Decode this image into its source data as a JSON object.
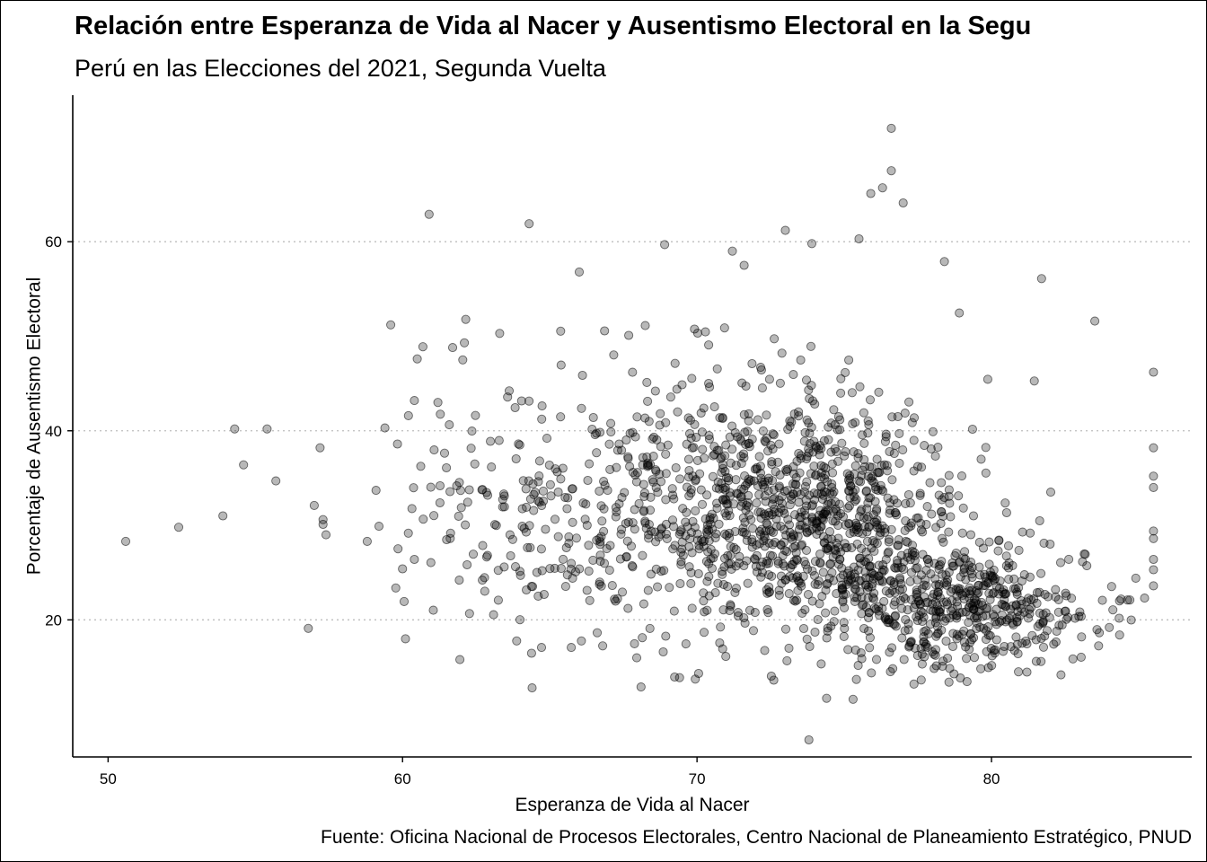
{
  "chart_data": {
    "type": "scatter",
    "title": "Relación entre Esperanza de Vida al Nacer y Ausentismo Electoral en la Segu",
    "subtitle": "Perú en las Elecciones del 2021, Segunda Vuelta",
    "xlabel": "Esperanza de Vida al Nacer",
    "ylabel": "Porcentaje de Ausentismo Electoral",
    "caption": "Fuente: Oficina Nacional de Procesos Electorales, Centro Nacional de Planeamiento Estratégico, PNUD",
    "xlim": [
      48.8,
      86.8
    ],
    "ylim": [
      5.5,
      75.5
    ],
    "x_ticks": [
      50,
      60,
      70,
      80
    ],
    "y_ticks": [
      20,
      40,
      60
    ],
    "grid": {
      "major_y": "dotted",
      "x": false
    },
    "point_color": "#000000",
    "point_alpha": 0.28,
    "highlighted_points": [
      {
        "x": 50.6,
        "y": 28.3
      },
      {
        "x": 52.4,
        "y": 29.8
      },
      {
        "x": 53.9,
        "y": 31.0
      },
      {
        "x": 54.3,
        "y": 40.2
      },
      {
        "x": 54.6,
        "y": 36.4
      },
      {
        "x": 55.4,
        "y": 40.2
      },
      {
        "x": 55.7,
        "y": 34.7
      },
      {
        "x": 56.8,
        "y": 19.1
      },
      {
        "x": 57.0,
        "y": 32.1
      },
      {
        "x": 57.2,
        "y": 38.2
      },
      {
        "x": 57.3,
        "y": 30.6
      },
      {
        "x": 57.3,
        "y": 30.1
      },
      {
        "x": 57.4,
        "y": 29.0
      },
      {
        "x": 58.8,
        "y": 28.3
      },
      {
        "x": 59.1,
        "y": 33.7
      },
      {
        "x": 59.2,
        "y": 29.9
      },
      {
        "x": 59.4,
        "y": 40.3
      },
      {
        "x": 59.6,
        "y": 51.2
      },
      {
        "x": 60.0,
        "y": 25.4
      },
      {
        "x": 60.1,
        "y": 18.0
      },
      {
        "x": 60.2,
        "y": 41.6
      },
      {
        "x": 60.4,
        "y": 43.2
      },
      {
        "x": 60.4,
        "y": 26.4
      },
      {
        "x": 60.5,
        "y": 47.6
      },
      {
        "x": 60.9,
        "y": 62.9
      },
      {
        "x": 61.2,
        "y": 43.0
      },
      {
        "x": 61.7,
        "y": 48.8
      },
      {
        "x": 62.1,
        "y": 49.3
      },
      {
        "x": 63.3,
        "y": 50.3
      },
      {
        "x": 64.3,
        "y": 61.9
      },
      {
        "x": 64.4,
        "y": 12.8
      },
      {
        "x": 66.0,
        "y": 56.8
      },
      {
        "x": 68.1,
        "y": 12.9
      },
      {
        "x": 68.9,
        "y": 59.7
      },
      {
        "x": 71.2,
        "y": 59.0
      },
      {
        "x": 71.6,
        "y": 57.5
      },
      {
        "x": 73.0,
        "y": 61.2
      },
      {
        "x": 73.8,
        "y": 7.3
      },
      {
        "x": 73.9,
        "y": 59.8
      },
      {
        "x": 74.4,
        "y": 11.7
      },
      {
        "x": 75.3,
        "y": 11.6
      },
      {
        "x": 75.5,
        "y": 60.3
      },
      {
        "x": 75.9,
        "y": 65.1
      },
      {
        "x": 76.3,
        "y": 65.7
      },
      {
        "x": 76.6,
        "y": 67.5
      },
      {
        "x": 76.6,
        "y": 72.0
      },
      {
        "x": 77.0,
        "y": 64.1
      },
      {
        "x": 78.4,
        "y": 57.9
      },
      {
        "x": 81.7,
        "y": 56.1
      },
      {
        "x": 84.0,
        "y": 19.2
      },
      {
        "x": 84.4,
        "y": 22.2
      },
      {
        "x": 84.7,
        "y": 22.1
      },
      {
        "x": 85.2,
        "y": 22.3
      },
      {
        "x": 85.5,
        "y": 46.2
      },
      {
        "x": 85.5,
        "y": 38.2
      },
      {
        "x": 85.5,
        "y": 35.2
      },
      {
        "x": 85.5,
        "y": 34.0
      },
      {
        "x": 85.5,
        "y": 29.4
      },
      {
        "x": 85.5,
        "y": 28.6
      },
      {
        "x": 85.5,
        "y": 26.4
      },
      {
        "x": 85.5,
        "y": 25.3
      },
      {
        "x": 85.5,
        "y": 23.6
      }
    ],
    "bulk_points": {
      "note": "Nube principal de ~1800 distritos",
      "count": 1800,
      "x_range": [
        59.5,
        85.5
      ],
      "y_range": [
        13,
        55
      ],
      "clusters": [
        {
          "x_mean": 73.5,
          "y_mean": 31.0,
          "x_sd": 2.6,
          "y_sd": 6.0,
          "weight": 0.4
        },
        {
          "x_mean": 78.8,
          "y_mean": 21.5,
          "x_sd": 2.4,
          "y_sd": 3.4,
          "weight": 0.3
        },
        {
          "x_mean": 70.5,
          "y_mean": 33.0,
          "x_sd": 3.8,
          "y_sd": 8.0,
          "weight": 0.2
        },
        {
          "x_mean": 64.5,
          "y_mean": 30.0,
          "x_sd": 2.8,
          "y_sd": 7.5,
          "weight": 0.1
        }
      ]
    }
  }
}
